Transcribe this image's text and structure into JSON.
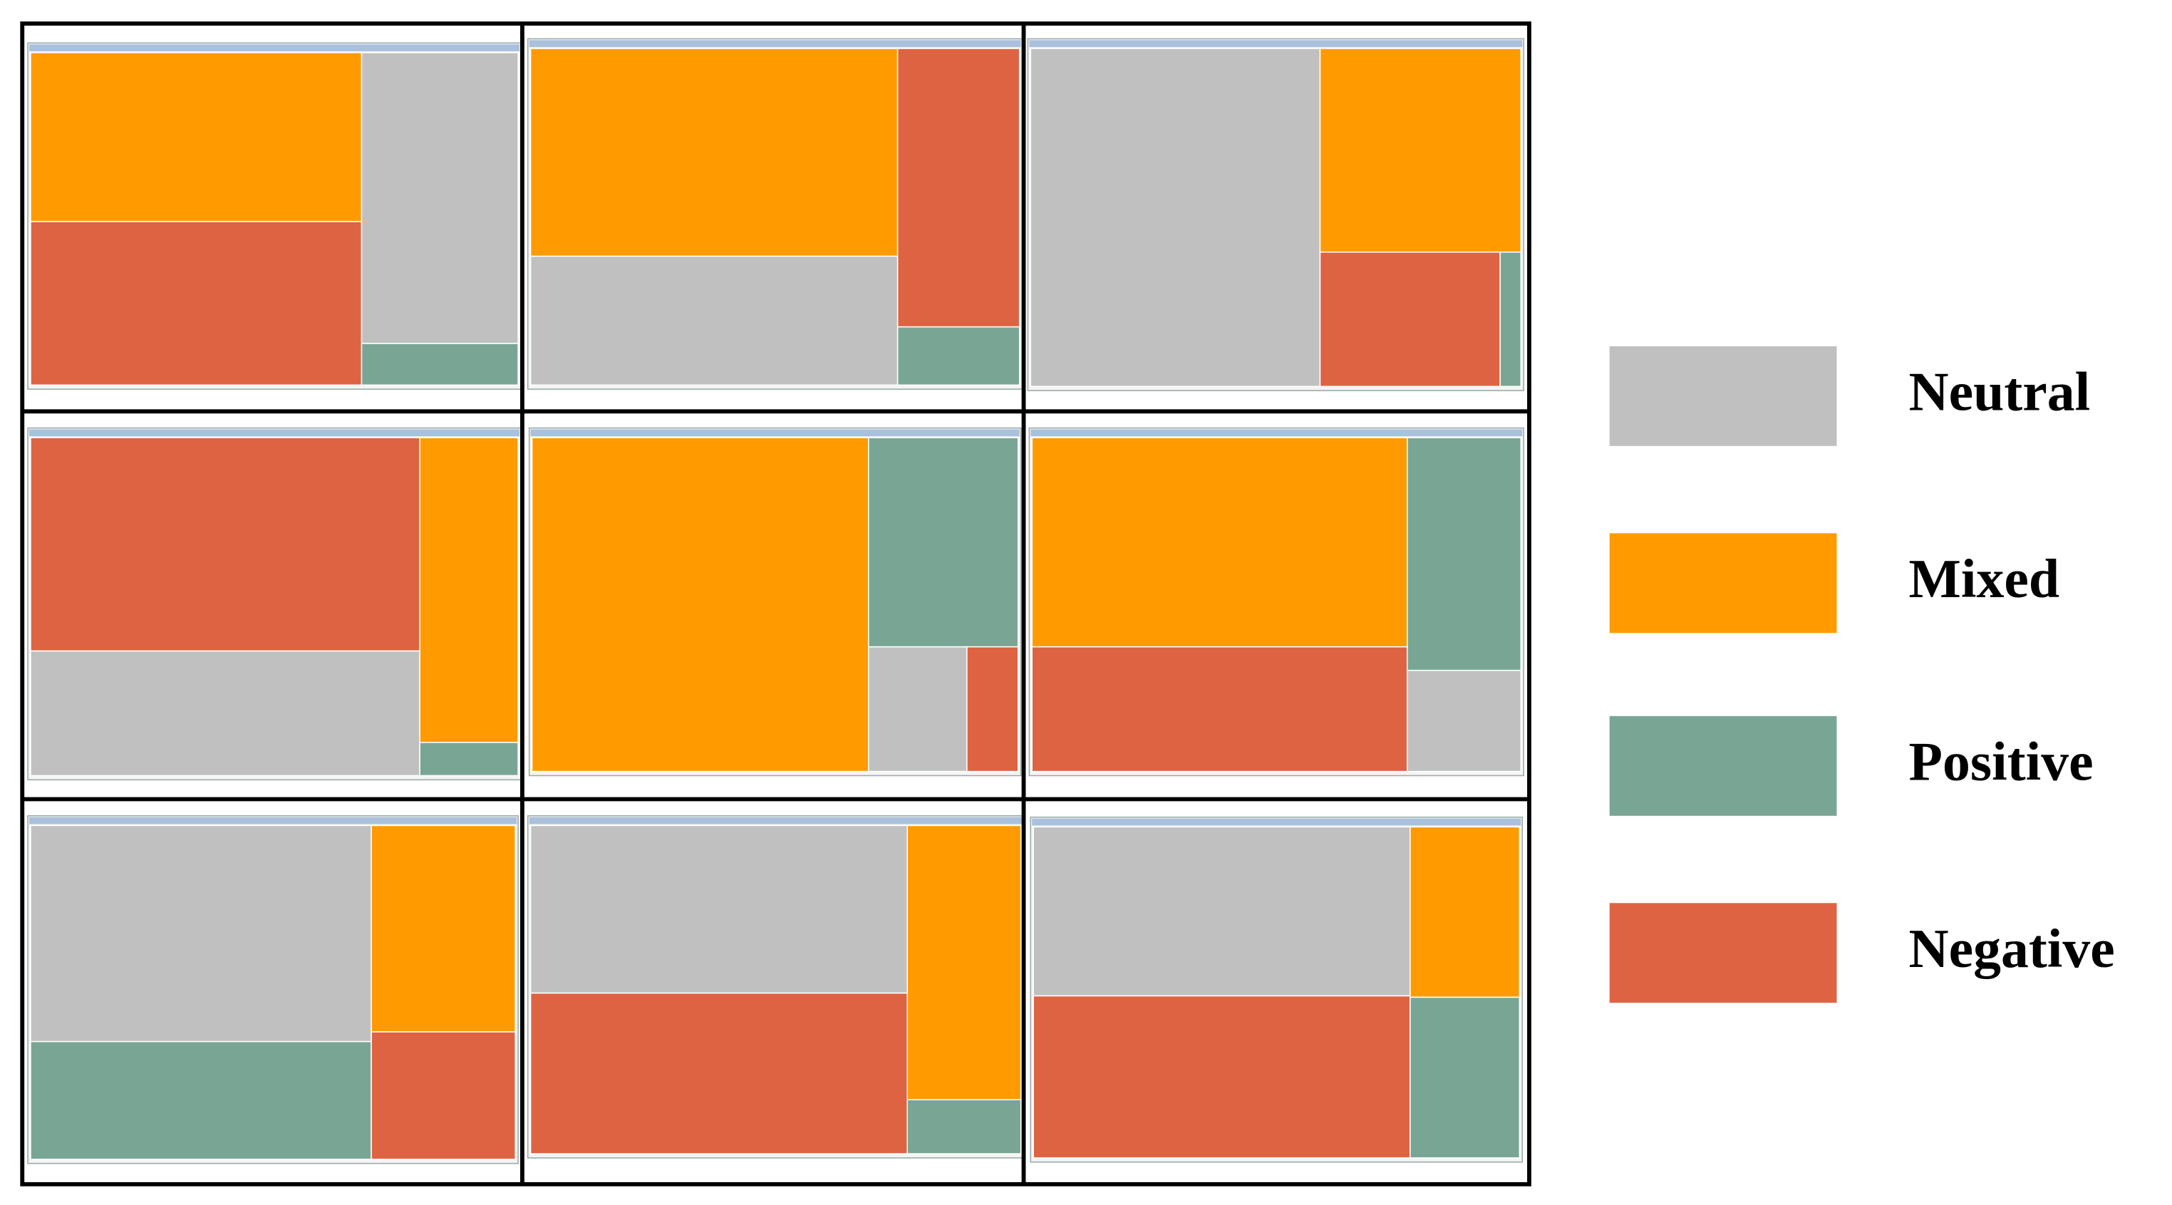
{
  "legend": [
    {
      "label": "Neutral",
      "color": "#c0c0c0"
    },
    {
      "label": "Mixed",
      "color": "#ff9b00"
    },
    {
      "label": "Positive",
      "color": "#79a694"
    },
    {
      "label": "Negative",
      "color": "#de6343"
    }
  ]
}
